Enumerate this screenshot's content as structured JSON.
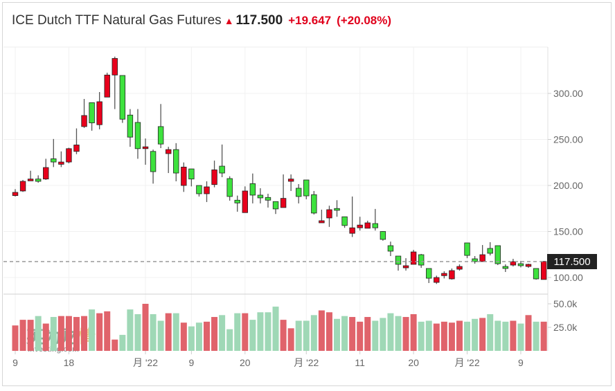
{
  "header": {
    "title": "ICE Dutch TTF Natural Gas Futures",
    "direction_icon": "arrow-up-icon",
    "last": "117.500",
    "change": "+19.647",
    "change_pct": "(+20.08%)"
  },
  "colors": {
    "up": "#e8001c",
    "down": "#3ee23e",
    "vol_up": "#e0636b",
    "vol_down": "#9fd8b6",
    "price_tag_bg": "#222222"
  },
  "chart_data": {
    "type": "candlestick",
    "price_axis": {
      "ticks": [
        "300.00",
        "250.00",
        "200.00",
        "150.00",
        "100.00"
      ],
      "tick_values": [
        300,
        250,
        200,
        150,
        100
      ],
      "ylim": [
        92,
        345
      ]
    },
    "volume_axis": {
      "ticks": [
        "50.0k",
        "25.0k"
      ],
      "tick_values": [
        50,
        25
      ],
      "unit": "k"
    },
    "x_tick_labels": [
      "9",
      "18",
      "月 '22",
      "9",
      "20",
      "月 '22",
      "11",
      "20",
      "月 '22",
      "9"
    ],
    "x_tick_index": [
      0,
      7,
      17,
      23,
      30,
      38,
      45,
      52,
      59,
      66
    ],
    "last_price_label": "117.500",
    "last_price": 117.5,
    "grid": true,
    "watermark": "英为财情 Investing.com",
    "ohlc": [
      [
        189,
        192.5,
        196,
        188
      ],
      [
        194,
        204.5,
        206,
        193
      ],
      [
        205,
        207,
        216,
        205
      ],
      [
        207,
        204.5,
        211,
        203
      ],
      [
        207,
        219.5,
        229,
        206
      ],
      [
        229,
        225.5,
        250.5,
        220
      ],
      [
        223,
        225.5,
        237,
        220
      ],
      [
        225.5,
        240,
        241,
        224
      ],
      [
        237,
        244,
        262,
        234
      ],
      [
        264,
        276,
        294,
        262.5
      ],
      [
        290,
        268,
        290,
        259.5
      ],
      [
        266,
        291,
        301.5,
        261
      ],
      [
        296,
        320,
        322.5,
        296
      ],
      [
        320,
        338,
        340,
        283
      ],
      [
        319.5,
        272,
        319.5,
        268
      ],
      [
        276.5,
        252.5,
        283,
        242
      ],
      [
        268.5,
        240,
        283,
        229
      ],
      [
        240,
        242,
        251,
        222.5
      ],
      [
        237,
        215,
        239,
        202
      ],
      [
        264,
        245,
        288.5,
        240.6
      ],
      [
        234.6,
        239,
        242,
        213.5
      ],
      [
        239,
        213.5,
        246,
        204.5
      ],
      [
        200,
        220,
        225,
        193
      ],
      [
        218,
        207,
        218,
        199
      ],
      [
        200,
        191,
        200,
        188
      ],
      [
        191,
        198.5,
        204.5,
        182
      ],
      [
        201,
        217,
        227,
        198
      ],
      [
        221,
        213.5,
        244.5,
        209
      ],
      [
        207.5,
        188,
        210,
        183.5
      ],
      [
        184,
        181,
        189,
        171.5
      ],
      [
        170.5,
        194,
        199,
        170.5
      ],
      [
        202,
        189.5,
        213,
        180.5
      ],
      [
        189.5,
        186.5,
        197,
        180.5
      ],
      [
        187,
        184,
        191,
        176
      ],
      [
        182.5,
        174.5,
        182.5,
        169
      ],
      [
        176,
        186,
        212,
        176
      ],
      [
        204.5,
        207,
        212,
        194
      ],
      [
        197,
        188,
        201.5,
        180.5
      ],
      [
        206,
        188.7,
        206,
        185
      ],
      [
        190,
        170,
        194,
        168.5
      ],
      [
        159.4,
        161.7,
        173.7,
        159.4
      ],
      [
        164.7,
        173.7,
        178,
        155
      ],
      [
        175,
        173,
        184,
        166
      ],
      [
        166,
        156.5,
        166,
        154
      ],
      [
        148,
        154,
        188,
        144
      ],
      [
        154,
        157,
        166,
        151
      ],
      [
        153.5,
        159.4,
        161.7,
        153.5
      ],
      [
        158.6,
        154,
        174.5,
        151
      ],
      [
        150,
        141.4,
        150.4,
        140
      ],
      [
        134.6,
        128.6,
        139,
        123.3
      ],
      [
        123.3,
        114.3,
        123.3,
        107.5
      ],
      [
        110.5,
        112.8,
        121,
        107.5
      ],
      [
        114.3,
        127.8,
        130,
        114.3
      ],
      [
        124.8,
        113.5,
        125.6,
        110.5
      ],
      [
        109.8,
        99.2,
        109.8,
        94
      ],
      [
        94.7,
        100,
        102,
        93
      ],
      [
        102,
        104.5,
        106.8,
        99
      ],
      [
        98.5,
        107.5,
        109.8,
        97.7
      ],
      [
        109,
        112,
        114.3,
        107.5
      ],
      [
        137.6,
        124,
        137.6,
        121
      ],
      [
        120.3,
        117.3,
        123.3,
        115
      ],
      [
        117.3,
        124.8,
        135.3,
        117.3
      ],
      [
        131.6,
        126.3,
        138.4,
        124
      ],
      [
        134.6,
        115,
        134.6,
        113.5
      ],
      [
        112,
        109.8,
        114.3,
        106
      ],
      [
        113.5,
        117.3,
        120.3,
        112
      ],
      [
        115,
        112.8,
        118,
        111
      ],
      [
        112,
        114.3,
        115,
        110.5
      ],
      [
        109.8,
        98.5,
        109.8,
        97.7
      ],
      [
        97.85,
        117.5,
        117.5,
        97.85
      ]
    ],
    "volume_k": [
      27,
      33,
      33,
      37,
      29,
      36,
      37,
      37,
      36,
      37,
      44,
      40,
      42,
      12,
      17,
      44,
      39,
      50,
      39,
      32,
      40,
      40,
      30,
      26,
      30,
      31,
      36,
      38,
      23,
      40,
      40,
      33,
      41,
      41,
      47,
      33,
      24,
      32,
      32,
      38,
      43,
      41,
      34,
      37,
      36,
      31,
      36,
      32,
      35,
      40,
      37,
      36,
      39,
      31,
      32,
      29,
      31,
      30,
      32,
      31,
      34,
      35,
      39,
      32,
      31,
      32,
      29,
      38,
      31,
      31
    ]
  }
}
